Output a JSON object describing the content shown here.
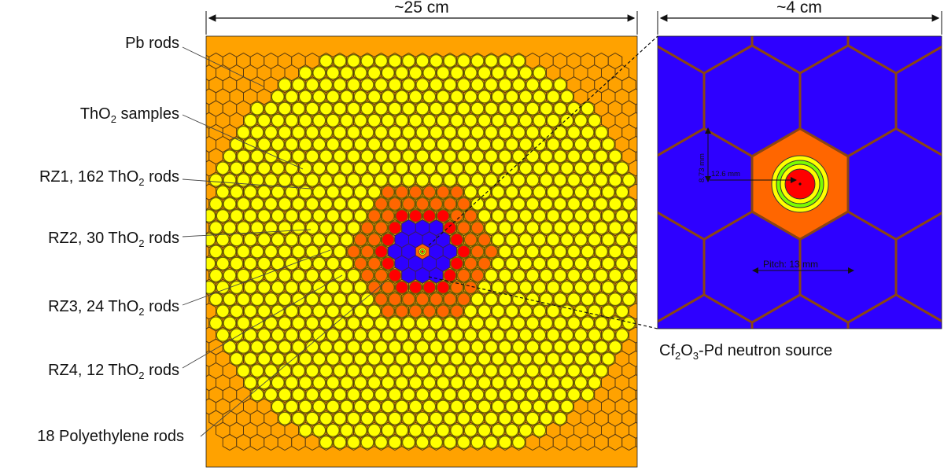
{
  "core": {
    "dimension": "~25 cm"
  },
  "detail": {
    "dimension": "~4 cm",
    "measure_vertical": "8.73 mm",
    "measure_horizontal": "12.6 mm",
    "pitch": "Pitch: 13 mm"
  },
  "labels": {
    "pb_rods": "Pb rods",
    "tho2_samples": {
      "pre": "ThO",
      "sub": "2",
      "post": " samples"
    },
    "rz1": {
      "pre": "RZ1, 162 ThO",
      "sub": "2",
      "post": " rods"
    },
    "rz2": {
      "pre": "RZ2, 30 ThO",
      "sub": "2",
      "post": " rods"
    },
    "rz3": {
      "pre": "RZ3, 24 ThO",
      "sub": "2",
      "post": " rods"
    },
    "rz4": {
      "pre": "RZ4, 12 ThO",
      "sub": "2",
      "post": " rods"
    },
    "polyethylene": "18 Polyethylene rods",
    "source": {
      "a": "Cf",
      "s1": "2",
      "b": "O",
      "s2": "3",
      "c": "-Pd neutron source"
    }
  },
  "colors": {
    "pb_orange": "#FFA200",
    "yellow_rod": "#FFFF00",
    "orange_rod": "#FF6600",
    "red_rod": "#FF0000",
    "polyethylene_blue": "#2E00FF",
    "grid_brown": "#7B3F10",
    "ring_green": "#7CFC00"
  }
}
